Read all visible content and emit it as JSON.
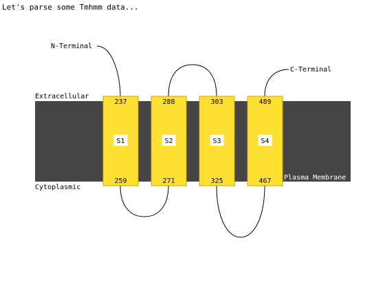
{
  "header": {
    "text": "Let's parse some Tmhmm data..."
  },
  "labels": {
    "extracellular": "Extracellular",
    "cytoplasmic": "Cytoplasmic",
    "membrane": "Plasma Membrane",
    "n_terminal": "N-Terminal",
    "c_terminal": "C-Terminal"
  },
  "segments": [
    {
      "name": "S1",
      "top": "237",
      "bottom": "259"
    },
    {
      "name": "S2",
      "top": "288",
      "bottom": "271"
    },
    {
      "name": "S3",
      "top": "303",
      "bottom": "325"
    },
    {
      "name": "S4",
      "top": "489",
      "bottom": "467"
    }
  ],
  "colors": {
    "membrane": "#454545",
    "segment_fill": "#ffe033",
    "segment_border": "#c8a600",
    "loop": "#000000",
    "label_bg": "#ffffff",
    "membrane_label": "#ffffff"
  }
}
